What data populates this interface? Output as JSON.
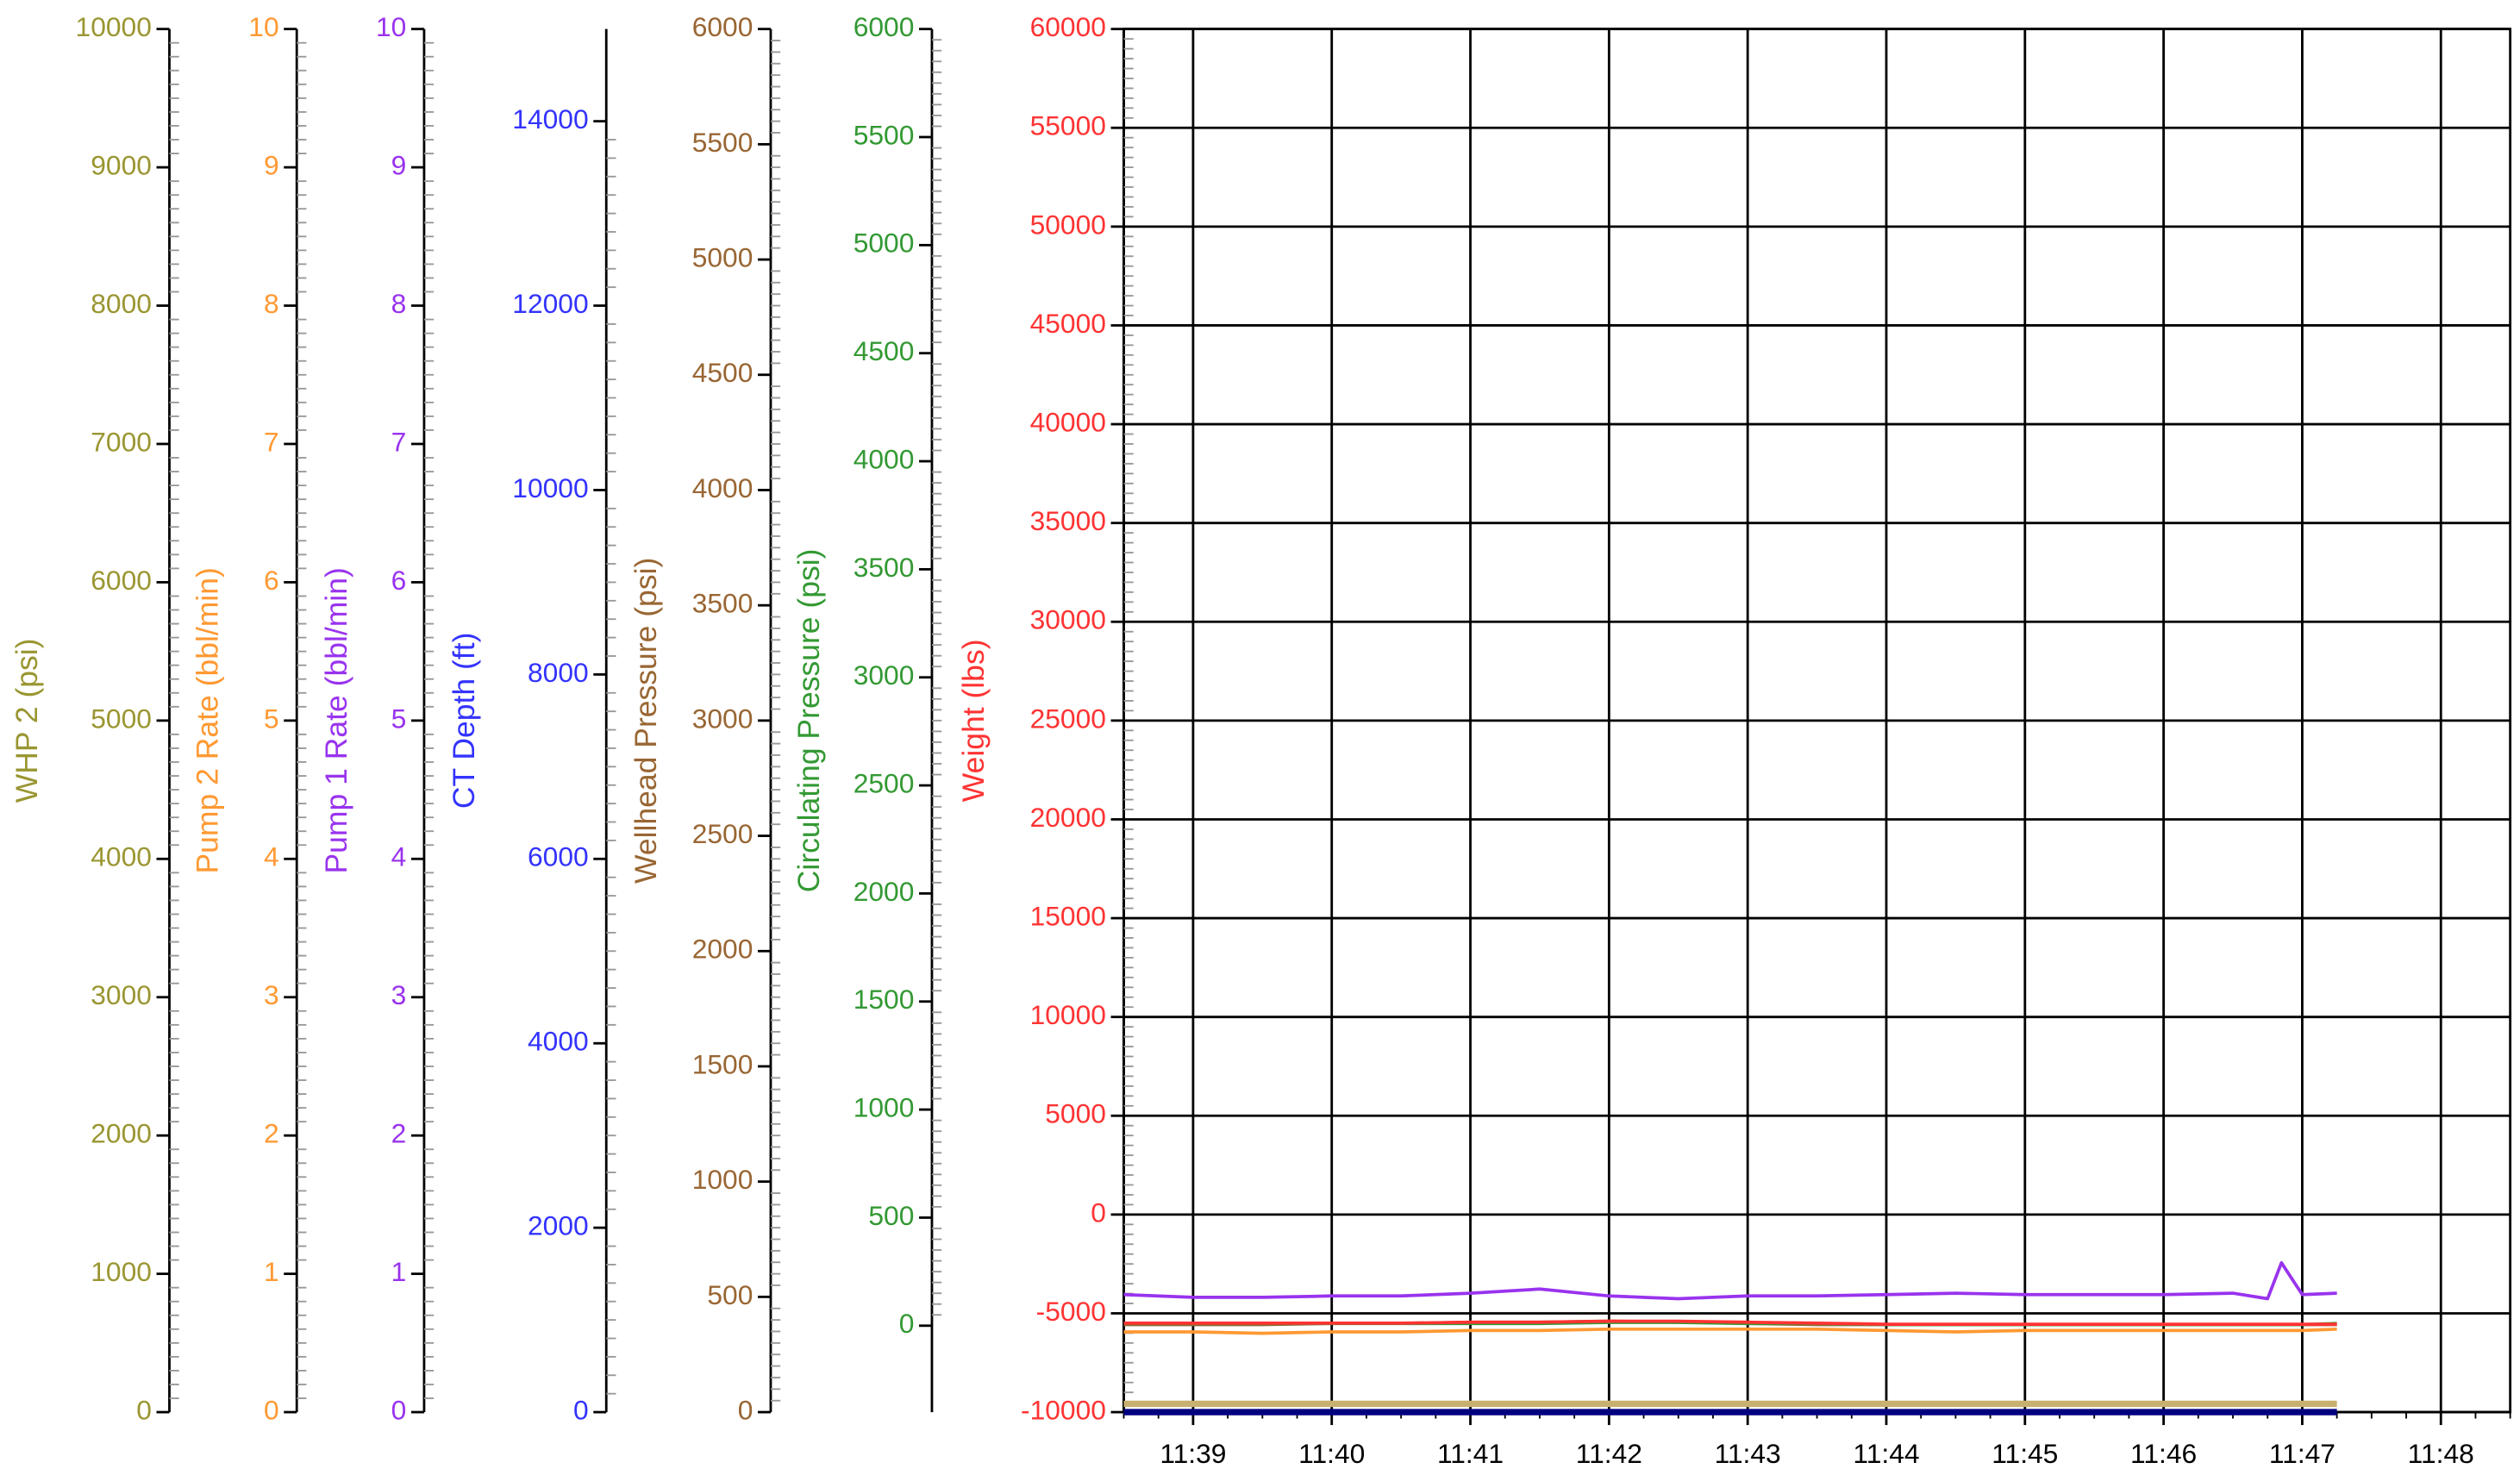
{
  "chart_data": {
    "type": "line",
    "grid": true,
    "x": [
      698.5,
      699,
      699.5,
      700,
      700.5,
      701,
      701.5,
      702,
      702.5,
      703,
      703.5,
      704,
      704.5,
      705,
      705.5,
      706,
      706.5,
      706.75,
      706.85,
      707,
      707.25
    ],
    "xlim": [
      698.5,
      708.5
    ],
    "xticks": [
      {
        "value": 699,
        "label": "11:39"
      },
      {
        "value": 700,
        "label": "11:40"
      },
      {
        "value": 701,
        "label": "11:41"
      },
      {
        "value": 702,
        "label": "11:42"
      },
      {
        "value": 703,
        "label": "11:43"
      },
      {
        "value": 704,
        "label": "11:44"
      },
      {
        "value": 705,
        "label": "11:45"
      },
      {
        "value": 706,
        "label": "11:46"
      },
      {
        "value": 707,
        "label": "11:47"
      },
      {
        "value": 708,
        "label": "11:48"
      }
    ],
    "axes": [
      {
        "label": "WHP 2  (psi)",
        "color": "#9a9632",
        "ylim": [
          0,
          10000
        ],
        "yticks": [
          0,
          1000,
          2000,
          3000,
          4000,
          5000,
          6000,
          7000,
          8000,
          9000,
          10000
        ]
      },
      {
        "label": "Pump 2  Rate  (bbl/min)",
        "color": "#ff9933",
        "ylim": [
          0,
          10
        ],
        "yticks": [
          0,
          1,
          2,
          3,
          4,
          5,
          6,
          7,
          8,
          9,
          10
        ]
      },
      {
        "label": "Pump 1 Rate  (bbl/min)",
        "color": "#9933ee",
        "ylim": [
          0,
          10
        ],
        "yticks": [
          0,
          1,
          2,
          3,
          4,
          5,
          6,
          7,
          8,
          9,
          10
        ]
      },
      {
        "label": "CT Depth  (ft)",
        "color": "#3333ff",
        "ylim": [
          0,
          15000
        ],
        "yticks": [
          0,
          2000,
          4000,
          6000,
          8000,
          10000,
          12000,
          14000
        ]
      },
      {
        "label": "Wellhead Pressure  (psi)",
        "color": "#996633",
        "ylim": [
          0,
          6000
        ],
        "yticks": [
          0,
          500,
          1000,
          1500,
          2000,
          2500,
          3000,
          3500,
          4000,
          4500,
          5000,
          5500,
          6000
        ]
      },
      {
        "label": "Circulating Pressure  (psi)",
        "color": "#339933",
        "ylim": [
          -400,
          6000
        ],
        "yticks": [
          0,
          500,
          1000,
          1500,
          2000,
          2500,
          3000,
          3500,
          4000,
          4500,
          5000,
          5500,
          6000
        ]
      },
      {
        "label": "Weight  (lbs)",
        "color": "#ff3333",
        "ylim": [
          -10000,
          60000
        ],
        "yticks": [
          -10000,
          -5000,
          0,
          5000,
          10000,
          15000,
          20000,
          25000,
          30000,
          35000,
          40000,
          45000,
          50000,
          55000,
          60000
        ]
      }
    ],
    "series": [
      {
        "axis": 0,
        "color": "#c8b070",
        "values": [
          60,
          60,
          60,
          60,
          60,
          60,
          60,
          60,
          60,
          60,
          60,
          60,
          60,
          60,
          60,
          60,
          60,
          60,
          60,
          60,
          60
        ]
      },
      {
        "axis": 3,
        "color": "#000080",
        "values": [
          0,
          0,
          0,
          0,
          0,
          0,
          0,
          0,
          0,
          0,
          0,
          0,
          0,
          0,
          0,
          0,
          0,
          0,
          0,
          0,
          0
        ]
      },
      {
        "axis": 4,
        "color": "#996633",
        "values": [
          380,
          380,
          380,
          385,
          385,
          390,
          390,
          395,
          390,
          385,
          380,
          380,
          380,
          380,
          380,
          380,
          380,
          380,
          380,
          380,
          380
        ]
      },
      {
        "axis": 1,
        "color": "#ff9933",
        "values": [
          0.58,
          0.58,
          0.57,
          0.58,
          0.58,
          0.59,
          0.59,
          0.6,
          0.6,
          0.6,
          0.6,
          0.59,
          0.58,
          0.59,
          0.59,
          0.59,
          0.59,
          0.59,
          0.59,
          0.59,
          0.6
        ]
      },
      {
        "axis": 5,
        "color": "#339933",
        "values": [
          10,
          10,
          10,
          10,
          10,
          10,
          10,
          15,
          15,
          10,
          10,
          5,
          5,
          5,
          5,
          5,
          5,
          5,
          5,
          5,
          10
        ]
      },
      {
        "axis": 6,
        "color": "#ff3333",
        "values": [
          -5500,
          -5500,
          -5500,
          -5500,
          -5500,
          -5450,
          -5450,
          -5400,
          -5400,
          -5450,
          -5500,
          -5550,
          -5550,
          -5550,
          -5550,
          -5550,
          -5550,
          -5550,
          -5550,
          -5550,
          -5550
        ]
      },
      {
        "axis": 2,
        "color": "#9933ee",
        "values": [
          0.85,
          0.83,
          0.83,
          0.84,
          0.84,
          0.86,
          0.89,
          0.84,
          0.82,
          0.84,
          0.84,
          0.85,
          0.86,
          0.85,
          0.85,
          0.85,
          0.86,
          0.82,
          1.08,
          0.85,
          0.86
        ]
      }
    ]
  }
}
